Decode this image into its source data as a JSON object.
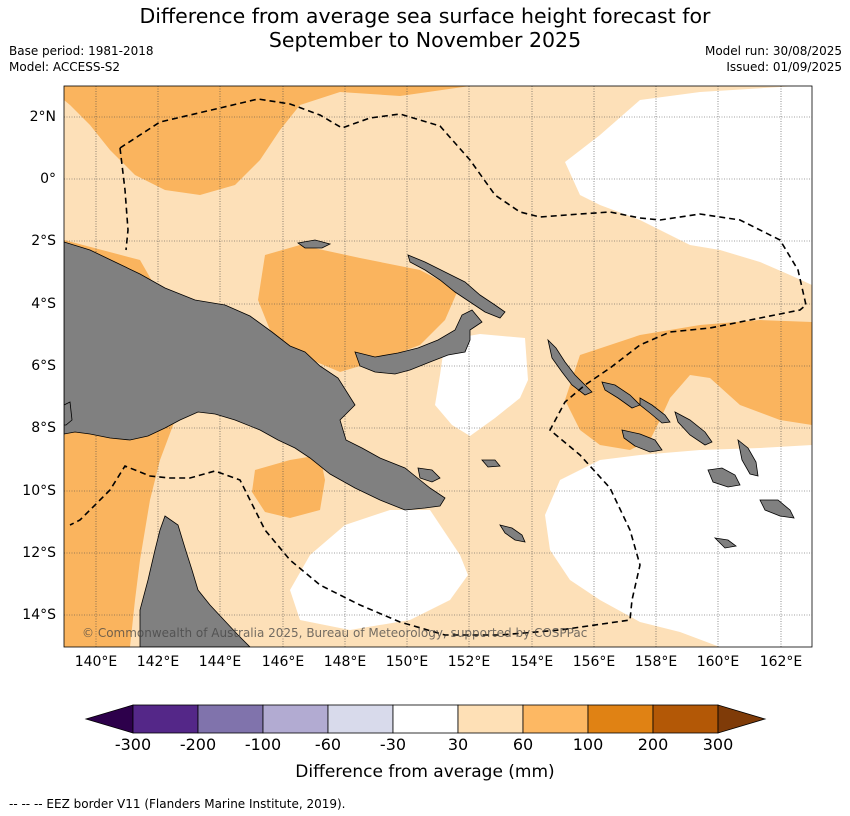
{
  "header": {
    "title_line1": "Difference from average sea surface height forecast for",
    "title_line2": "September to November 2025",
    "base_period": "Base period: 1981-2018",
    "model": "Model: ACCESS-S2",
    "model_run": "Model run: 30/08/2025",
    "issued": "Issued: 01/09/2025"
  },
  "map": {
    "lat_labels": [
      "2°N",
      "0°",
      "2°S",
      "4°S",
      "6°S",
      "8°S",
      "10°S",
      "12°S",
      "14°S"
    ],
    "lon_labels": [
      "140°E",
      "142°E",
      "144°E",
      "146°E",
      "148°E",
      "150°E",
      "152°E",
      "154°E",
      "156°E",
      "158°E",
      "160°E",
      "162°E"
    ],
    "copyright": "© Commonwealth of Australia 2025, Bureau of Meteorology, supported by COSPPac",
    "colors": {
      "land": "#808080",
      "band_30_60": "#fde0b8",
      "band_60_100": "#fab45e",
      "band_100_200": "#e08214",
      "neutral": "#ffffff",
      "eez_border": "#000000"
    }
  },
  "colorbar": {
    "label": "Difference from average (mm)",
    "ticks": [
      "-300",
      "-200",
      "-100",
      "-60",
      "-30",
      "30",
      "60",
      "100",
      "200",
      "300"
    ],
    "colors": [
      "#2d004b",
      "#542788",
      "#8073ac",
      "#b2abd2",
      "#d8daeb",
      "#ffffff",
      "#fee0b6",
      "#fdb863",
      "#e08214",
      "#b35806",
      "#7f3b08"
    ]
  },
  "footnote": "--  --  -- EEZ border V11 (Flanders Marine Institute, 2019)."
}
